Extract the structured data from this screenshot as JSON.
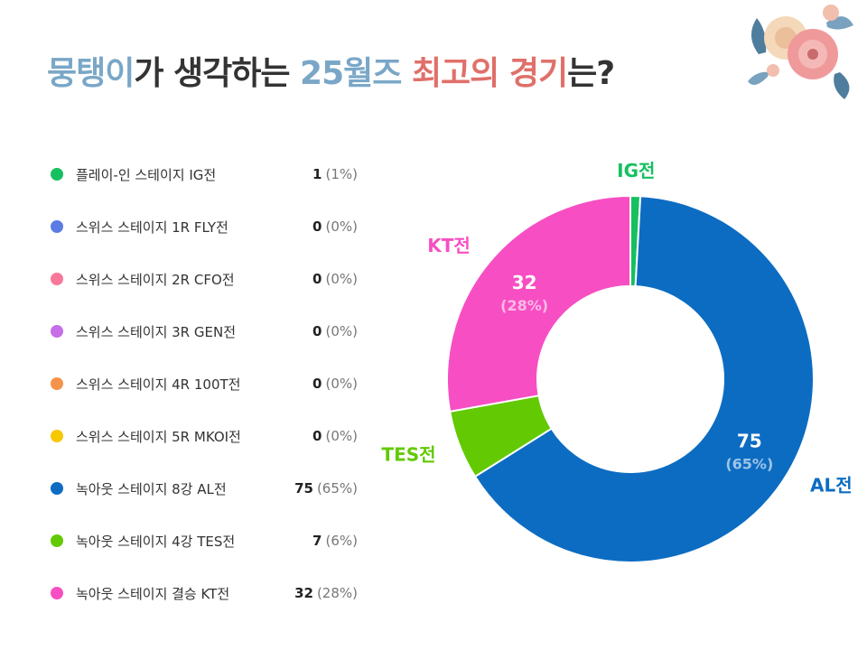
{
  "title": {
    "part1": "뭉탱이",
    "part2": "가 생각하는 ",
    "part3": "25월즈",
    "part4": " ",
    "part5": "최고의 경기",
    "part6": "는?"
  },
  "colors": {
    "title_blue": "#7aa7c7",
    "title_red": "#e0706a"
  },
  "legend": [
    {
      "label": "플레이-인 스테이지 IG전",
      "value": "1",
      "pct": "(1%)",
      "color": "#16c060"
    },
    {
      "label": "스위스 스테이지 1R FLY전",
      "value": "0",
      "pct": "(0%)",
      "color": "#5b7be5"
    },
    {
      "label": "스위스 스테이지 2R CFO전",
      "value": "0",
      "pct": "(0%)",
      "color": "#f7789a"
    },
    {
      "label": "스위스 스테이지 3R GEN전",
      "value": "0",
      "pct": "(0%)",
      "color": "#c56ee8"
    },
    {
      "label": "스위스 스테이지 4R 100T전",
      "value": "0",
      "pct": "(0%)",
      "color": "#f5934a"
    },
    {
      "label": "스위스 스테이지 5R MKOI전",
      "value": "0",
      "pct": "(0%)",
      "color": "#f7c700"
    },
    {
      "label": "녹아웃 스테이지 8강 AL전",
      "value": "75",
      "pct": "(65%)",
      "color": "#0c6cc2"
    },
    {
      "label": "녹아웃 스테이지 4강 TES전",
      "value": "7",
      "pct": "(6%)",
      "color": "#63c903"
    },
    {
      "label": "녹아웃 스테이지 결승 KT전",
      "value": "32",
      "pct": "(28%)",
      "color": "#f74fc3"
    }
  ],
  "chart_data": {
    "type": "pie",
    "donut": true,
    "slices": [
      {
        "name": "IG전",
        "value": 1,
        "pct": "(1%)",
        "color": "#16c060",
        "show_inner_label": false
      },
      {
        "name": "AL전",
        "value": 75,
        "pct": "(65%)",
        "color": "#0c6cc2",
        "show_inner_label": true
      },
      {
        "name": "TES전",
        "value": 7,
        "pct": "(6%)",
        "color": "#63c903",
        "show_inner_label": false
      },
      {
        "name": "KT전",
        "value": 32,
        "pct": "(28%)",
        "color": "#f74fc3",
        "show_inner_label": true
      }
    ]
  }
}
